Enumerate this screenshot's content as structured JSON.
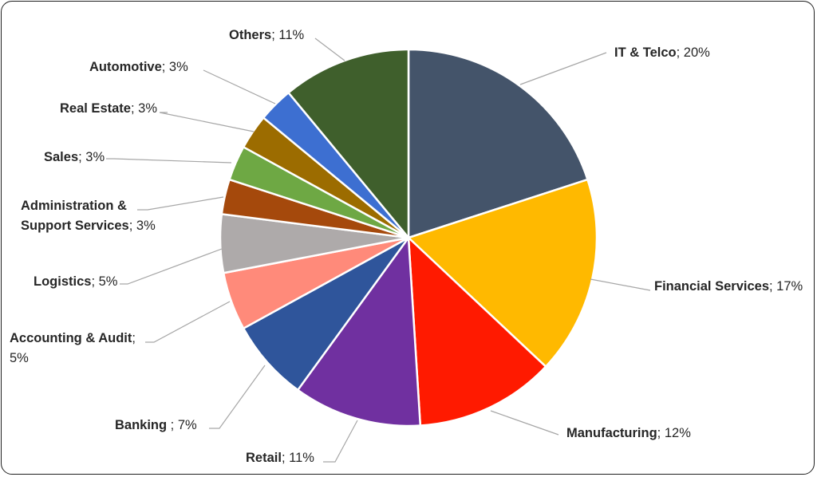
{
  "chart_data": {
    "type": "pie",
    "title": "",
    "start_angle_deg": 0,
    "direction": "clockwise",
    "slices": [
      {
        "label": "IT & Telco",
        "value": 20,
        "value_label": "20%",
        "color": "#44546a"
      },
      {
        "label": "Financial Services",
        "value": 17,
        "value_label": "17%",
        "color": "#ffb900"
      },
      {
        "label": "Manufacturing",
        "value": 12,
        "value_label": "12%",
        "color": "#ff1a00"
      },
      {
        "label": "Retail",
        "value": 11,
        "value_label": "11%",
        "color": "#7030a0"
      },
      {
        "label": "Banking",
        "value": 7,
        "value_label": "7%",
        "color": "#2f559b"
      },
      {
        "label": "Accounting & Audit",
        "value": 5,
        "value_label": "5%",
        "color": "#ff8a7a"
      },
      {
        "label": "Logistics",
        "value": 5,
        "value_label": "5%",
        "color": "#aeaaaa"
      },
      {
        "label": "Administration & Support Services",
        "value": 3,
        "value_label": "3%",
        "color": "#a5490c"
      },
      {
        "label": "Sales",
        "value": 3,
        "value_label": "3%",
        "color": "#6ea844"
      },
      {
        "label": "Real Estate",
        "value": 3,
        "value_label": "3%",
        "color": "#9c6c00"
      },
      {
        "label": "Automotive",
        "value": 3,
        "value_label": "3%",
        "color": "#3d6fd1"
      },
      {
        "label": "Others",
        "value": 11,
        "value_label": "11%",
        "color": "#3f5f2c"
      }
    ]
  }
}
